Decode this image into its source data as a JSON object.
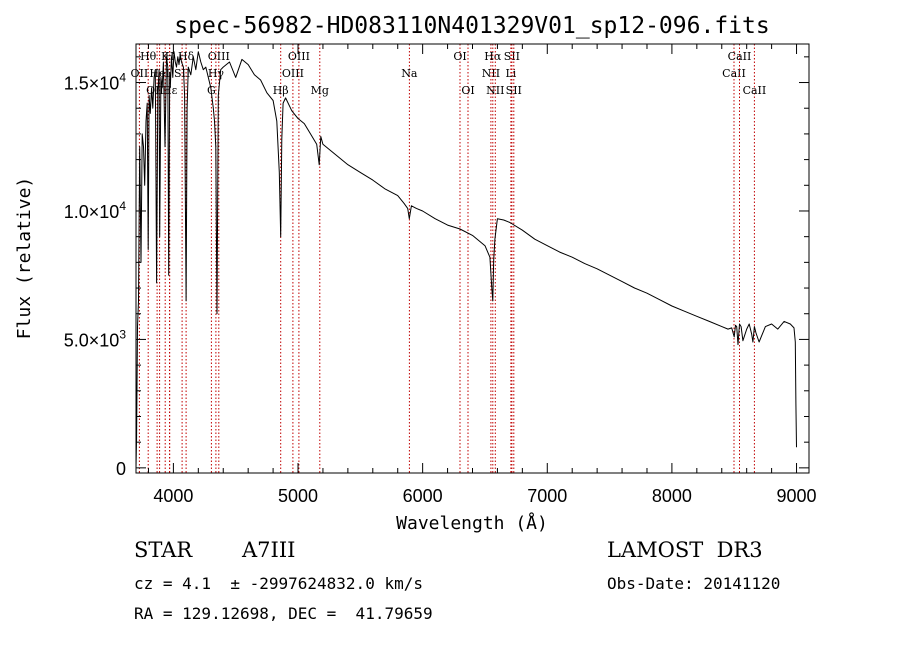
{
  "colors": {
    "axis": "#000000",
    "spectrum": "#000000",
    "line_marker": "#c00000"
  },
  "info": {
    "object_type": "STAR",
    "subclass": "A7III",
    "survey": "LAMOST  DR3",
    "cz_text": "cz = 4.1  ± -2997624832.0 km/s",
    "obs_date_text": "Obs-Date: 20141120",
    "radec_text": "RA = 129.12698, DEC =  41.79659"
  },
  "chart_data": {
    "type": "line",
    "title": "spec-56982-HD083110N401329V01_sp12-096.fits",
    "xlabel": "Wavelength (Å)",
    "ylabel": "Flux (relative)",
    "xlim": [
      3700,
      9100
    ],
    "ylim": [
      -200,
      16500
    ],
    "x_ticks": [
      {
        "value": 4000,
        "label": "4000"
      },
      {
        "value": 5000,
        "label": "5000"
      },
      {
        "value": 6000,
        "label": "6000"
      },
      {
        "value": 7000,
        "label": "7000"
      },
      {
        "value": 8000,
        "label": "8000"
      },
      {
        "value": 9000,
        "label": "9000"
      }
    ],
    "y_ticks": [
      {
        "value": 0,
        "mantissa": "0",
        "exp": ""
      },
      {
        "value": 5000,
        "mantissa": "5.0×10",
        "exp": "3"
      },
      {
        "value": 10000,
        "mantissa": "1.0×10",
        "exp": "4"
      },
      {
        "value": 15000,
        "mantissa": "1.5×10",
        "exp": "4"
      }
    ],
    "series": [
      {
        "name": "spectrum",
        "x": [
          3700,
          3705,
          3712,
          3720,
          3730,
          3740,
          3750,
          3760,
          3770,
          3780,
          3790,
          3798,
          3805,
          3815,
          3825,
          3835,
          3845,
          3855,
          3865,
          3875,
          3885,
          3890,
          3900,
          3910,
          3920,
          3933,
          3945,
          3955,
          3962,
          3970,
          3975,
          3985,
          3995,
          4005,
          4015,
          4025,
          4035,
          4045,
          4055,
          4065,
          4080,
          4090,
          4102,
          4110,
          4120,
          4140,
          4160,
          4180,
          4200,
          4220,
          4240,
          4260,
          4280,
          4300,
          4320,
          4330,
          4340,
          4350,
          4360,
          4380,
          4400,
          4450,
          4500,
          4550,
          4600,
          4650,
          4700,
          4750,
          4800,
          4830,
          4850,
          4861,
          4870,
          4880,
          4900,
          4950,
          5000,
          5050,
          5100,
          5150,
          5170,
          5183,
          5200,
          5300,
          5400,
          5500,
          5600,
          5700,
          5800,
          5850,
          5880,
          5893,
          5910,
          5950,
          6000,
          6100,
          6200,
          6300,
          6400,
          6500,
          6540,
          6555,
          6563,
          6570,
          6580,
          6600,
          6650,
          6700,
          6800,
          6900,
          7000,
          7100,
          7200,
          7300,
          7400,
          7500,
          7600,
          7700,
          7800,
          7900,
          8000,
          8100,
          8200,
          8300,
          8400,
          8450,
          8480,
          8500,
          8510,
          8520,
          8530,
          8542,
          8555,
          8570,
          8600,
          8620,
          8640,
          8650,
          8662,
          8675,
          8700,
          8750,
          8800,
          8850,
          8900,
          8950,
          8980,
          8990,
          8995,
          9000
        ],
        "y": [
          0,
          1200,
          5500,
          6500,
          12500,
          8000,
          13000,
          12500,
          11000,
          13500,
          14200,
          8500,
          14500,
          13800,
          14800,
          14000,
          15200,
          15500,
          7200,
          14600,
          15500,
          9000,
          15200,
          14800,
          15800,
          12500,
          16000,
          15600,
          7500,
          15400,
          14800,
          16000,
          15200,
          16200,
          15800,
          15600,
          16000,
          15700,
          16100,
          15800,
          15600,
          14500,
          6500,
          14000,
          15600,
          15300,
          16000,
          15500,
          16200,
          15800,
          15500,
          15600,
          15200,
          14800,
          14000,
          13500,
          12500,
          6000,
          14500,
          15500,
          15600,
          15800,
          15200,
          15900,
          15700,
          15300,
          15100,
          14600,
          14300,
          13500,
          11500,
          9000,
          12800,
          14200,
          14400,
          13900,
          13600,
          13400,
          13000,
          12600,
          11800,
          12900,
          12600,
          12200,
          11800,
          11500,
          11200,
          10850,
          10600,
          10300,
          10100,
          9700,
          10200,
          10100,
          10000,
          9700,
          9450,
          9300,
          9050,
          8650,
          8200,
          7000,
          6500,
          8100,
          8900,
          9700,
          9650,
          9550,
          9250,
          8900,
          8650,
          8400,
          8200,
          7950,
          7750,
          7500,
          7250,
          7000,
          6800,
          6550,
          6300,
          6100,
          5900,
          5700,
          5500,
          5400,
          5450,
          5100,
          5550,
          5500,
          4800,
          5600,
          5500,
          4950,
          5400,
          5600,
          5200,
          4900,
          5500,
          5250,
          4900,
          5500,
          5600,
          5400,
          5700,
          5600,
          5450,
          4900,
          2500,
          800
        ]
      }
    ],
    "lines": [
      {
        "name": "Hθ",
        "wavelength": 3798,
        "row": 0
      },
      {
        "name": "OII",
        "wavelength": 3727,
        "row": 1
      },
      {
        "name": "OIII",
        "wavelength": 3869,
        "row": 2
      },
      {
        "name": "Hε",
        "wavelength": 3970,
        "row": 2
      },
      {
        "name": "K",
        "wavelength": 3934,
        "row": 0
      },
      {
        "name": "H",
        "wavelength": 3969,
        "row": 0
      },
      {
        "name": "HeI",
        "wavelength": 3889,
        "row": 1
      },
      {
        "name": "SII",
        "wavelength": 4070,
        "row": 1
      },
      {
        "name": "Hδ",
        "wavelength": 4102,
        "row": 0
      },
      {
        "name": "G",
        "wavelength": 4305,
        "row": 2
      },
      {
        "name": "OIII",
        "wavelength": 4364,
        "row": 0
      },
      {
        "name": "Hγ",
        "wavelength": 4341,
        "row": 1
      },
      {
        "name": "Hβ",
        "wavelength": 4861,
        "row": 2
      },
      {
        "name": "OIII",
        "wavelength": 4959,
        "row": 1
      },
      {
        "name": "OIII",
        "wavelength": 5007,
        "row": 0
      },
      {
        "name": "Mg",
        "wavelength": 5175,
        "row": 2
      },
      {
        "name": "Na",
        "wavelength": 5894,
        "row": 1
      },
      {
        "name": "OI",
        "wavelength": 6300,
        "row": 0
      },
      {
        "name": "OI",
        "wavelength": 6364,
        "row": 2
      },
      {
        "name": "NII",
        "wavelength": 6548,
        "row": 1
      },
      {
        "name": "Hα",
        "wavelength": 6563,
        "row": 0
      },
      {
        "name": "NII",
        "wavelength": 6583,
        "row": 2
      },
      {
        "name": "SII",
        "wavelength": 6716,
        "row": 0
      },
      {
        "name": "Li",
        "wavelength": 6708,
        "row": 1
      },
      {
        "name": "SII",
        "wavelength": 6731,
        "row": 2
      },
      {
        "name": "CaII",
        "wavelength": 8498,
        "row": 1
      },
      {
        "name": "CaII",
        "wavelength": 8542,
        "row": 0
      },
      {
        "name": "CaII",
        "wavelength": 8662,
        "row": 2
      }
    ]
  }
}
